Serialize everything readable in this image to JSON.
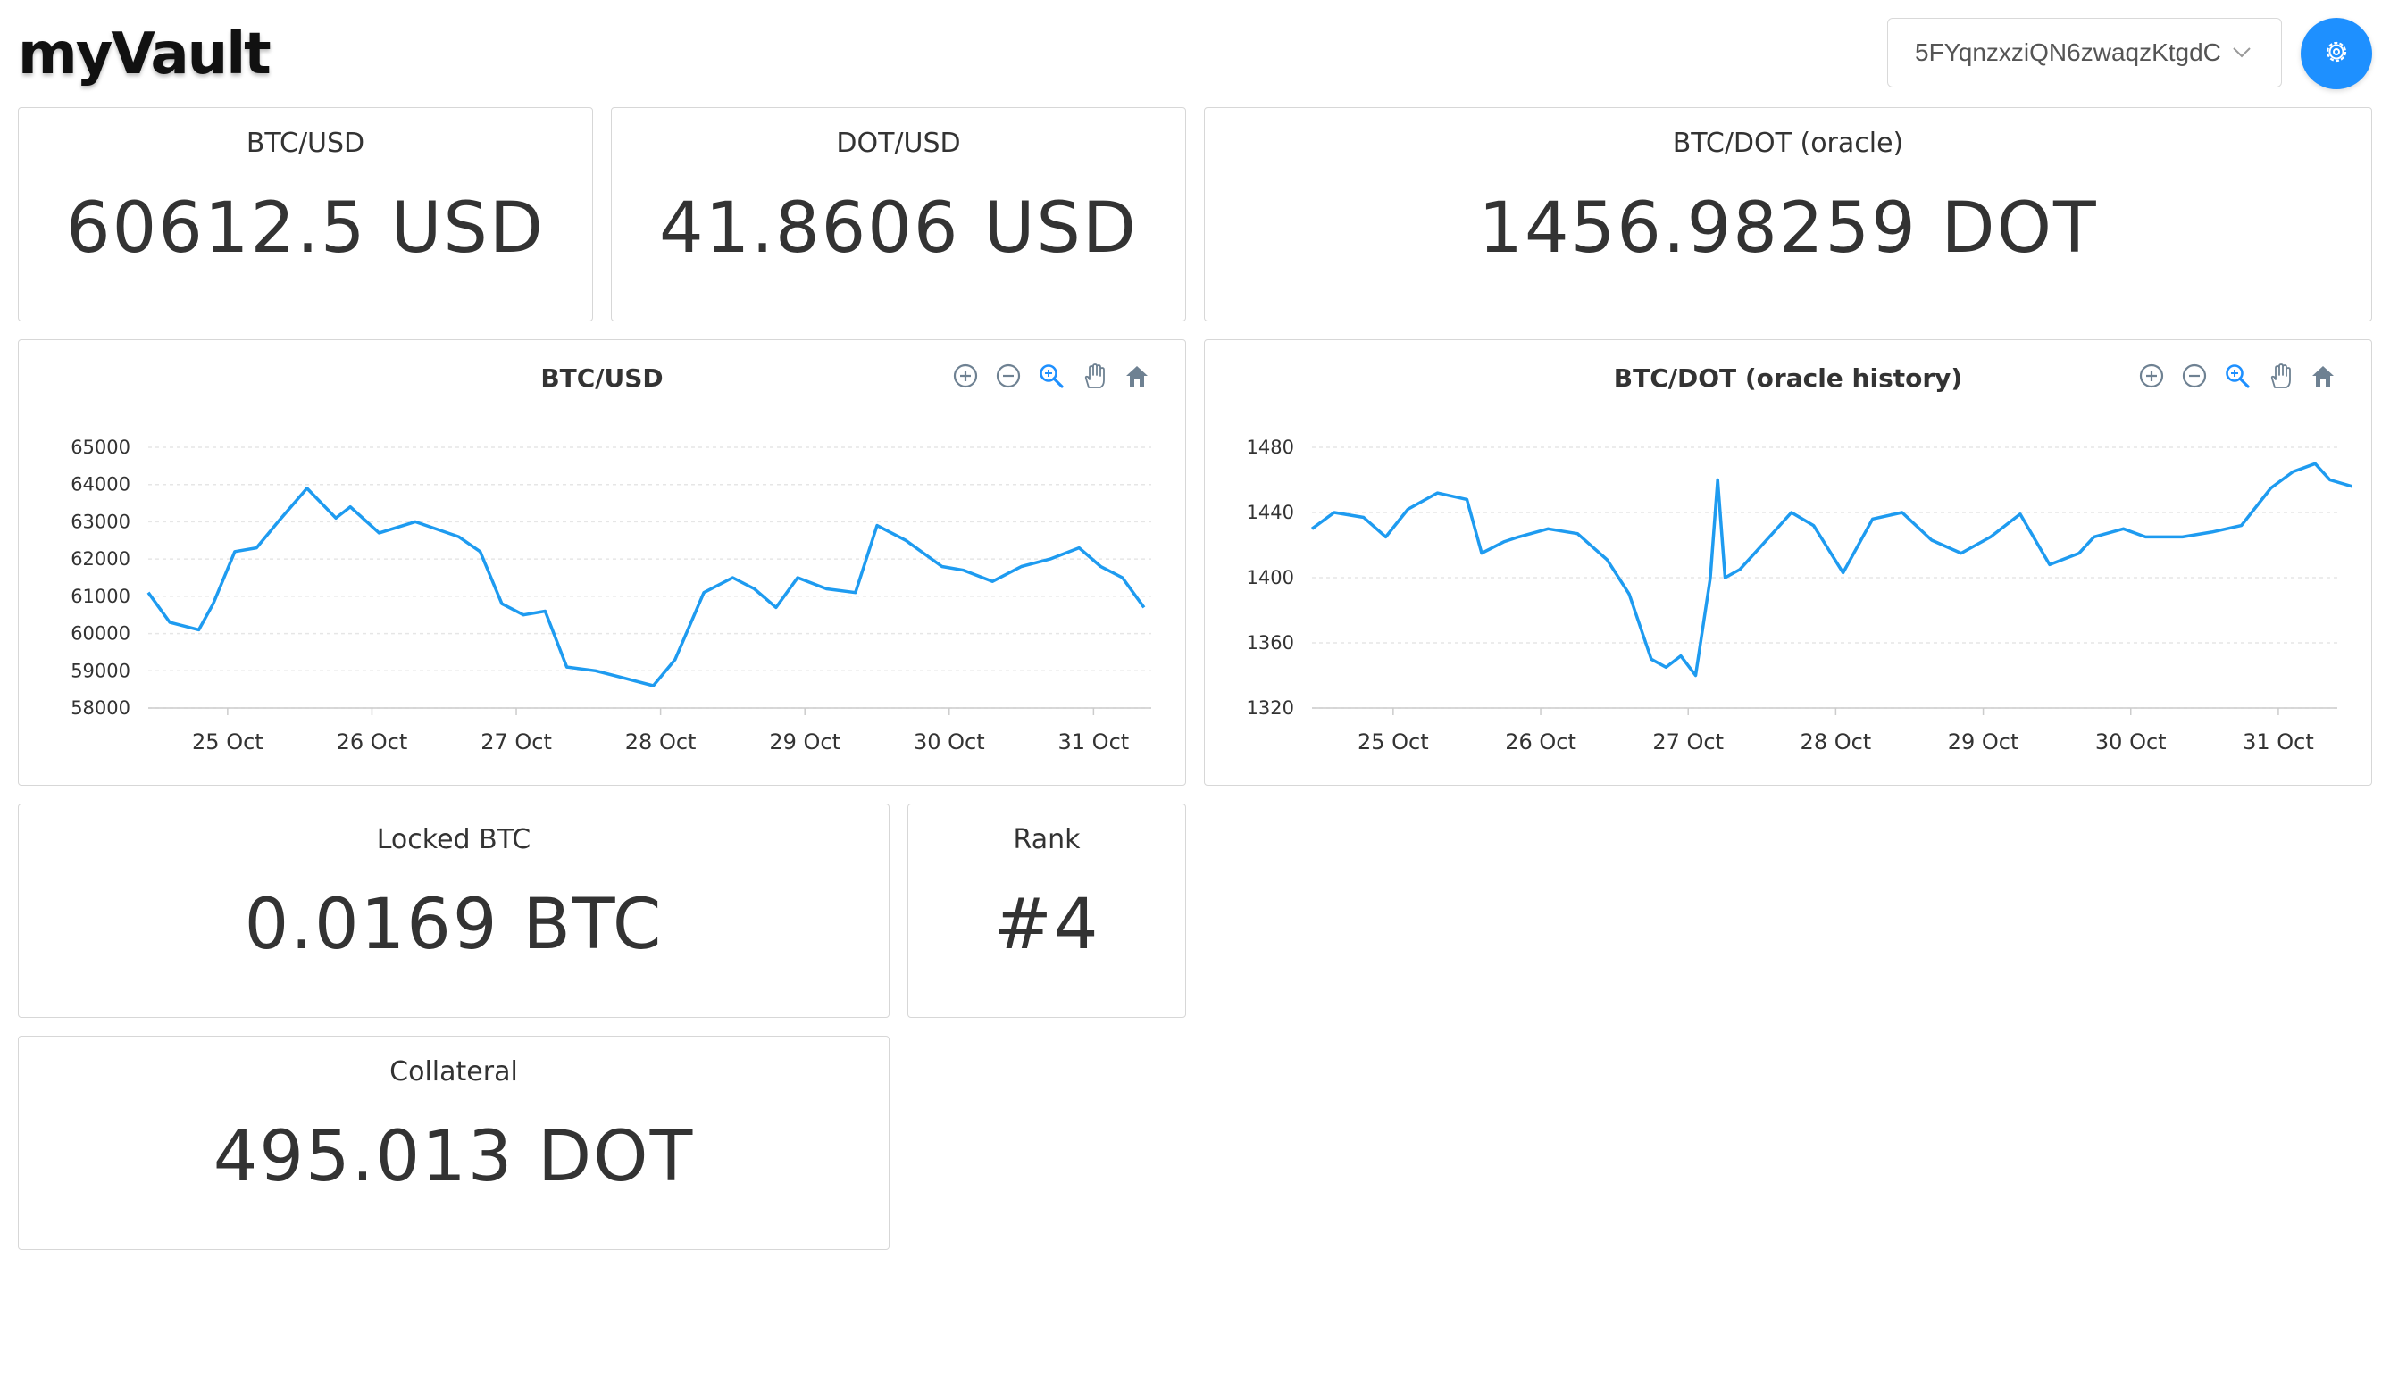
{
  "app": {
    "logo": "myVault"
  },
  "header": {
    "account_select": {
      "value": "5FYqnzxziQN6zwaqzKtgdC",
      "icon": "chevron-down-icon"
    },
    "settings_button": {
      "icon": "gear-icon",
      "color": "#1e90ff"
    }
  },
  "stats": {
    "btc_usd": {
      "label": "BTC/USD",
      "value": "60612.5 USD"
    },
    "dot_usd": {
      "label": "DOT/USD",
      "value": "41.8606 USD"
    },
    "btc_dot": {
      "label": "BTC/DOT (oracle)",
      "value": "1456.98259 DOT"
    },
    "locked_btc": {
      "label": "Locked BTC",
      "value": "0.0169 BTC"
    },
    "rank": {
      "label": "Rank",
      "value": "#4"
    },
    "collateral": {
      "label": "Collateral",
      "value": "495.013 DOT"
    }
  },
  "chart_toolbar": {
    "icons": [
      "zoom-in-icon",
      "zoom-out-icon",
      "selection-zoom-icon",
      "pan-icon",
      "reset-home-icon"
    ],
    "active_color": "#1e90ff"
  },
  "chart_data": [
    {
      "type": "line",
      "title": "BTC/USD",
      "line_color": "#1e9bf0",
      "ylim": [
        58000,
        65000
      ],
      "yticks": [
        "65000",
        "64000",
        "63000",
        "62000",
        "61000",
        "60000",
        "59000",
        "58000"
      ],
      "xticks": [
        "25 Oct",
        "26 Oct",
        "27 Oct",
        "28 Oct",
        "29 Oct",
        "30 Oct",
        "31 Oct"
      ],
      "grid": true,
      "series": [
        {
          "x": [
            24.45,
            24.6,
            24.8,
            24.9,
            25.05,
            25.2,
            25.35,
            25.55,
            25.75,
            25.85,
            26.05,
            26.3,
            26.6,
            26.75,
            26.9,
            27.05,
            27.2,
            27.35,
            27.55,
            27.75,
            27.95,
            28.1,
            28.3,
            28.5,
            28.65,
            28.8,
            28.95,
            29.15,
            29.35,
            29.5,
            29.7,
            29.95,
            30.1,
            30.3,
            30.5,
            30.7,
            30.9,
            31.05,
            31.2,
            31.35
          ],
          "y": [
            61100,
            60300,
            60100,
            60800,
            62200,
            62300,
            63000,
            63900,
            63100,
            63400,
            62700,
            63000,
            62600,
            62200,
            60800,
            60500,
            60600,
            59100,
            59000,
            58800,
            58600,
            59300,
            61100,
            61500,
            61200,
            60700,
            61500,
            61200,
            61100,
            62900,
            62500,
            61800,
            61700,
            61400,
            61800,
            62000,
            62300,
            61800,
            61500,
            60700
          ]
        }
      ]
    },
    {
      "type": "line",
      "title": "BTC/DOT (oracle history)",
      "line_color": "#1e9bf0",
      "ylim": [
        1320,
        1480
      ],
      "yticks": [
        "1480",
        "1440",
        "1400",
        "1360",
        "1320"
      ],
      "xticks": [
        "25 Oct",
        "26 Oct",
        "27 Oct",
        "28 Oct",
        "29 Oct",
        "30 Oct",
        "31 Oct"
      ],
      "grid": true,
      "series": [
        {
          "x": [
            24.45,
            24.6,
            24.8,
            24.95,
            25.1,
            25.3,
            25.5,
            25.6,
            25.75,
            25.85,
            26.05,
            26.25,
            26.45,
            26.6,
            26.75,
            26.85,
            26.95,
            27.05,
            27.15,
            27.2,
            27.25,
            27.35,
            27.55,
            27.7,
            27.85,
            28.05,
            28.25,
            28.45,
            28.65,
            28.85,
            29.05,
            29.25,
            29.45,
            29.65,
            29.75,
            29.95,
            30.1,
            30.35,
            30.55,
            30.75,
            30.95,
            31.1,
            31.25,
            31.35,
            31.5
          ],
          "y": [
            1430,
            1440,
            1437,
            1425,
            1442,
            1452,
            1448,
            1415,
            1422,
            1425,
            1430,
            1427,
            1411,
            1390,
            1350,
            1345,
            1352,
            1340,
            1400,
            1460,
            1400,
            1405,
            1425,
            1440,
            1432,
            1403,
            1436,
            1440,
            1423,
            1415,
            1425,
            1439,
            1408,
            1415,
            1425,
            1430,
            1425,
            1425,
            1428,
            1432,
            1455,
            1465,
            1470,
            1460,
            1456
          ]
        }
      ]
    }
  ]
}
